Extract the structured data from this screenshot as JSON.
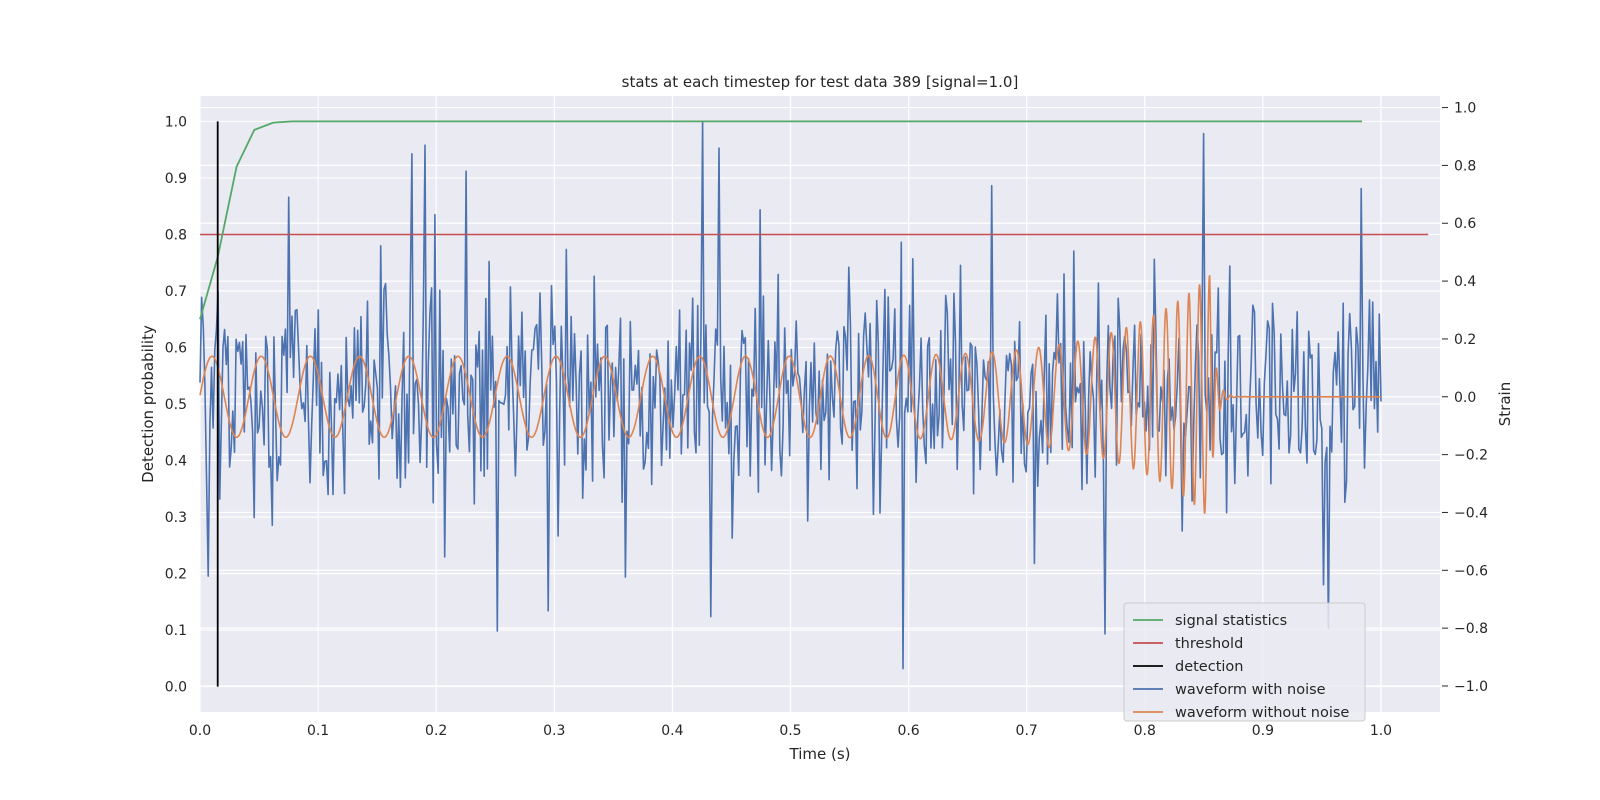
{
  "chart_data": {
    "type": "line",
    "title": "stats at each timestep for test data 389 [signal=1.0]",
    "xlabel": "Time (s)",
    "ylabel_left": "Detection probability",
    "ylabel_right": "Strain",
    "xlim": [
      0.0,
      1.05
    ],
    "ylim_left": [
      -0.045,
      1.045
    ],
    "ylim_right": [
      -1.09,
      1.04
    ],
    "x_ticks": [
      "0.0",
      "0.1",
      "0.2",
      "0.3",
      "0.4",
      "0.5",
      "0.6",
      "0.7",
      "0.8",
      "0.9",
      "1.0"
    ],
    "y_left_ticks": [
      "0.0",
      "0.1",
      "0.2",
      "0.3",
      "0.4",
      "0.5",
      "0.6",
      "0.7",
      "0.8",
      "0.9",
      "1.0"
    ],
    "y_right_ticks": [
      "−1.0",
      "−0.8",
      "−0.6",
      "−0.4",
      "−0.2",
      "0.0",
      "0.2",
      "0.4",
      "0.6",
      "0.8",
      "1.0"
    ],
    "grid": true,
    "legend_position": "bottom-right",
    "threshold": 0.8,
    "detection_time": 0.015,
    "series": [
      {
        "name": "signal statistics",
        "axis": "left",
        "color": "#55a868",
        "x": [
          0.0,
          0.015,
          0.031,
          0.046,
          0.062,
          0.078,
          0.093,
          0.2,
          0.4,
          0.6,
          0.8,
          0.984
        ],
        "y": [
          0.65,
          0.76,
          0.92,
          0.985,
          0.998,
          1.0,
          1.0,
          1.0,
          1.0,
          1.0,
          1.0,
          1.0
        ]
      },
      {
        "name": "threshold",
        "axis": "left",
        "color": "#c44e52",
        "x": [
          0.0,
          1.04
        ],
        "y": [
          0.8,
          0.8
        ]
      },
      {
        "name": "detection",
        "axis": "left",
        "color": "#000000",
        "x": [
          0.015,
          0.015
        ],
        "y": [
          0.0,
          1.0
        ]
      },
      {
        "name": "waveform with noise",
        "axis": "right",
        "color": "#4c72b0",
        "x_range": [
          0.0,
          1.0
        ],
        "samples": 720,
        "std": 0.2,
        "peaks": [
          {
            "x": 0.007,
            "y": -0.62
          },
          {
            "x": 0.075,
            "y": 0.69
          },
          {
            "x": 0.18,
            "y": 0.84
          },
          {
            "x": 0.19,
            "y": 0.87
          },
          {
            "x": 0.226,
            "y": 0.78
          },
          {
            "x": 0.252,
            "y": -0.81
          },
          {
            "x": 0.295,
            "y": -0.74
          },
          {
            "x": 0.425,
            "y": 0.95
          },
          {
            "x": 0.432,
            "y": -0.76
          },
          {
            "x": 0.44,
            "y": 0.86
          },
          {
            "x": 0.595,
            "y": -0.94
          },
          {
            "x": 0.67,
            "y": 0.73
          },
          {
            "x": 0.767,
            "y": -0.82
          },
          {
            "x": 0.85,
            "y": 0.91
          },
          {
            "x": 0.955,
            "y": -0.8
          },
          {
            "x": 0.984,
            "y": 0.72
          }
        ]
      },
      {
        "name": "waveform without noise",
        "axis": "right",
        "color": "#dd8452",
        "x_range": [
          0.0,
          1.0
        ],
        "merger_time": 0.855,
        "amplitude_start": 0.14,
        "amplitude_peak": 0.42,
        "frequency_start": 24,
        "frequency_peak": 120
      }
    ]
  }
}
